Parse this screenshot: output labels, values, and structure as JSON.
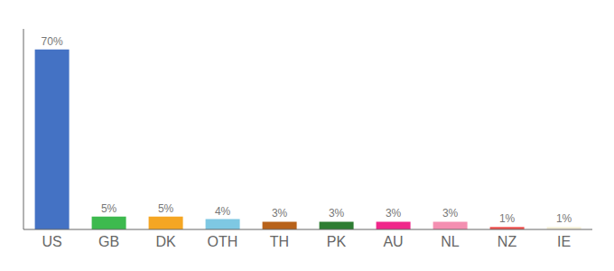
{
  "chart_data": {
    "type": "bar",
    "categories": [
      "US",
      "GB",
      "DK",
      "OTH",
      "TH",
      "PK",
      "AU",
      "NL",
      "NZ",
      "IE"
    ],
    "values": [
      70,
      5,
      5,
      4,
      3,
      3,
      3,
      3,
      1,
      1
    ],
    "value_labels": [
      "70%",
      "5%",
      "5%",
      "4%",
      "3%",
      "3%",
      "3%",
      "3%",
      "1%",
      "1%"
    ],
    "colors": [
      "#4472c4",
      "#3dba4e",
      "#f5a623",
      "#7ec8e3",
      "#b8621a",
      "#2e7d32",
      "#f0278a",
      "#f48fb1",
      "#ef5350",
      "#f5f0d8"
    ],
    "ylim": [
      0,
      78
    ],
    "data_labels": true,
    "tick_labels": "x",
    "grid": false
  }
}
